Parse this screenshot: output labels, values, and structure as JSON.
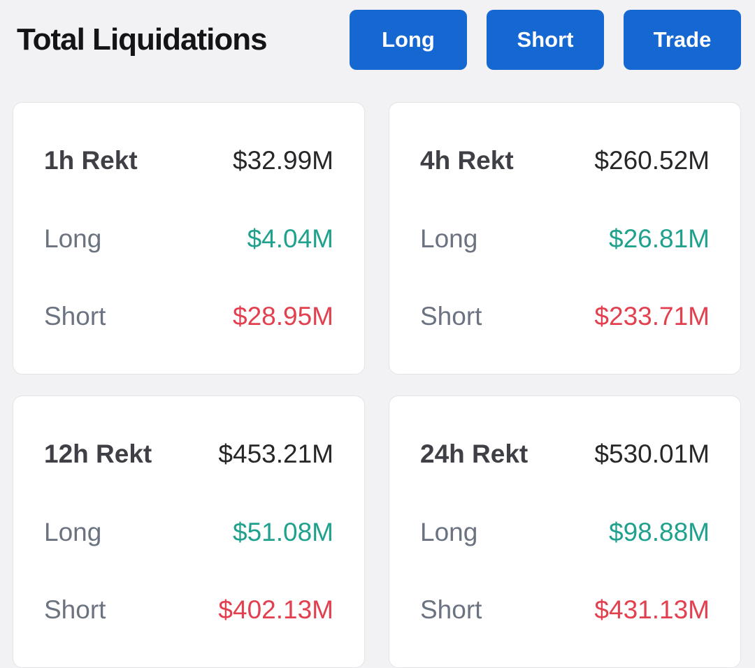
{
  "header": {
    "title": "Total Liquidations",
    "buttons": [
      {
        "label": "Long"
      },
      {
        "label": "Short"
      },
      {
        "label": "Trade"
      }
    ]
  },
  "cards": [
    {
      "period": "1h Rekt",
      "total": "$32.99M",
      "long_label": "Long",
      "long_value": "$4.04M",
      "short_label": "Short",
      "short_value": "$28.95M"
    },
    {
      "period": "4h Rekt",
      "total": "$260.52M",
      "long_label": "Long",
      "long_value": "$26.81M",
      "short_label": "Short",
      "short_value": "$233.71M"
    },
    {
      "period": "12h Rekt",
      "total": "$453.21M",
      "long_label": "Long",
      "long_value": "$51.08M",
      "short_label": "Short",
      "short_value": "$402.13M"
    },
    {
      "period": "24h Rekt",
      "total": "$530.01M",
      "long_label": "Long",
      "long_value": "$98.88M",
      "short_label": "Short",
      "short_value": "$431.13M"
    }
  ],
  "colors": {
    "background": "#f2f2f4",
    "button_blue": "#1567d2",
    "long_green": "#1fa18d",
    "short_red": "#e2404f"
  }
}
